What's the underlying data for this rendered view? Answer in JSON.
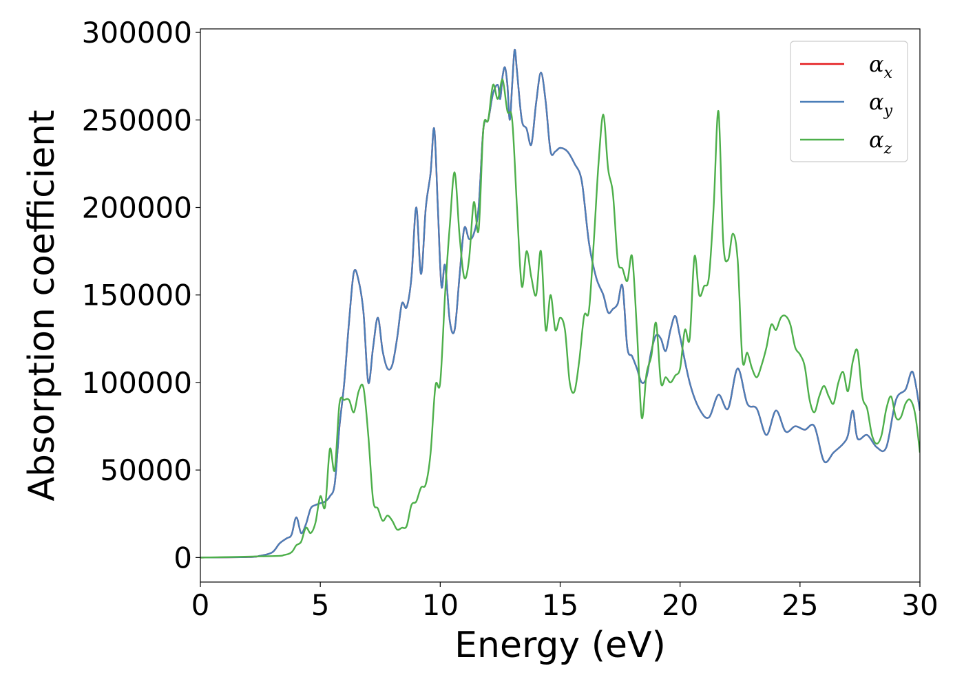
{
  "chart_data": {
    "type": "line",
    "xlabel": "Energy (eV)",
    "ylabel": "Absorption coefficient",
    "xlim": [
      0,
      30
    ],
    "ylim": [
      -14000,
      302000
    ],
    "xticks": [
      0,
      5,
      10,
      15,
      20,
      25,
      30
    ],
    "xtick_labels": [
      "0",
      "5",
      "10",
      "15",
      "20",
      "25",
      "30"
    ],
    "yticks": [
      0,
      50000,
      100000,
      150000,
      200000,
      250000,
      300000
    ],
    "ytick_labels": [
      "0",
      "50000",
      "100000",
      "150000",
      "200000",
      "250000",
      "300000"
    ],
    "grid": false,
    "legend_position": "top-right",
    "series": [
      {
        "name": "α_x",
        "legend_base": "α",
        "legend_sub": "x",
        "color": "#e41a1c",
        "x": [
          0,
          2,
          2.5,
          3,
          3.3,
          3.6,
          3.8,
          4.0,
          4.2,
          4.4,
          4.6,
          4.8,
          5.0,
          5.2,
          5.4,
          5.6,
          5.8,
          6.0,
          6.2,
          6.4,
          6.6,
          6.8,
          7.0,
          7.2,
          7.4,
          7.6,
          7.8,
          8.0,
          8.2,
          8.4,
          8.6,
          8.8,
          9.0,
          9.2,
          9.4,
          9.6,
          9.75,
          9.9,
          10.05,
          10.2,
          10.4,
          10.6,
          10.8,
          11.0,
          11.2,
          11.4,
          11.6,
          11.8,
          12.0,
          12.2,
          12.4,
          12.5,
          12.6,
          12.7,
          12.8,
          12.9,
          13.0,
          13.1,
          13.2,
          13.4,
          13.6,
          13.8,
          14.0,
          14.2,
          14.4,
          14.6,
          14.8,
          15.0,
          15.3,
          15.6,
          15.9,
          16.2,
          16.5,
          16.8,
          17.0,
          17.2,
          17.4,
          17.6,
          17.8,
          18.0,
          18.2,
          18.4,
          18.6,
          18.8,
          19.0,
          19.2,
          19.4,
          19.6,
          19.8,
          20.0,
          20.4,
          20.8,
          21.2,
          21.6,
          22.0,
          22.4,
          22.8,
          23.2,
          23.6,
          24.0,
          24.4,
          24.8,
          25.2,
          25.6,
          26.0,
          26.4,
          26.8,
          27.0,
          27.2,
          27.4,
          27.8,
          28.2,
          28.6,
          29.0,
          29.4,
          29.7,
          30.0
        ],
        "y": [
          0,
          300,
          1000,
          3000,
          8000,
          11000,
          13000,
          23000,
          14000,
          19000,
          28000,
          30000,
          31000,
          32000,
          35000,
          42000,
          75000,
          100000,
          135000,
          163000,
          158000,
          140000,
          100000,
          120000,
          137000,
          118000,
          108000,
          110000,
          125000,
          145000,
          143000,
          160000,
          200000,
          162000,
          200000,
          220000,
          245000,
          200000,
          155000,
          167000,
          135000,
          130000,
          160000,
          188000,
          182000,
          185000,
          200000,
          245000,
          250000,
          265000,
          270000,
          262000,
          275000,
          280000,
          270000,
          250000,
          270000,
          290000,
          278000,
          250000,
          245000,
          236000,
          260000,
          277000,
          260000,
          232000,
          232000,
          234000,
          232000,
          225000,
          215000,
          180000,
          160000,
          150000,
          140000,
          142000,
          145000,
          155000,
          120000,
          115000,
          108000,
          100000,
          103000,
          118000,
          127000,
          125000,
          118000,
          130000,
          138000,
          126000,
          100000,
          85000,
          80000,
          93000,
          85000,
          108000,
          88000,
          85000,
          70000,
          84000,
          72000,
          75000,
          73000,
          75000,
          55000,
          60000,
          65000,
          70000,
          84000,
          68000,
          70000,
          63000,
          63000,
          90000,
          96000,
          106000,
          84000
        ]
      },
      {
        "name": "α_y",
        "legend_base": "α",
        "legend_sub": "y",
        "color": "#4a7eb8",
        "x": [
          0,
          2,
          2.5,
          3,
          3.3,
          3.6,
          3.8,
          4.0,
          4.2,
          4.4,
          4.6,
          4.8,
          5.0,
          5.2,
          5.4,
          5.6,
          5.8,
          6.0,
          6.2,
          6.4,
          6.6,
          6.8,
          7.0,
          7.2,
          7.4,
          7.6,
          7.8,
          8.0,
          8.2,
          8.4,
          8.6,
          8.8,
          9.0,
          9.2,
          9.4,
          9.6,
          9.75,
          9.9,
          10.05,
          10.2,
          10.4,
          10.6,
          10.8,
          11.0,
          11.2,
          11.4,
          11.6,
          11.8,
          12.0,
          12.2,
          12.4,
          12.5,
          12.6,
          12.7,
          12.8,
          12.9,
          13.0,
          13.1,
          13.2,
          13.4,
          13.6,
          13.8,
          14.0,
          14.2,
          14.4,
          14.6,
          14.8,
          15.0,
          15.3,
          15.6,
          15.9,
          16.2,
          16.5,
          16.8,
          17.0,
          17.2,
          17.4,
          17.6,
          17.8,
          18.0,
          18.2,
          18.4,
          18.6,
          18.8,
          19.0,
          19.2,
          19.4,
          19.6,
          19.8,
          20.0,
          20.4,
          20.8,
          21.2,
          21.6,
          22.0,
          22.4,
          22.8,
          23.2,
          23.6,
          24.0,
          24.4,
          24.8,
          25.2,
          25.6,
          26.0,
          26.4,
          26.8,
          27.0,
          27.2,
          27.4,
          27.8,
          28.2,
          28.6,
          29.0,
          29.4,
          29.7,
          30.0
        ],
        "y": [
          0,
          300,
          1000,
          3000,
          8000,
          11000,
          13000,
          23000,
          14000,
          19000,
          28000,
          30000,
          31000,
          32000,
          35000,
          42000,
          75000,
          100000,
          135000,
          163000,
          158000,
          140000,
          100000,
          120000,
          137000,
          118000,
          108000,
          110000,
          125000,
          145000,
          143000,
          160000,
          200000,
          162000,
          200000,
          220000,
          245000,
          200000,
          155000,
          167000,
          135000,
          130000,
          160000,
          188000,
          182000,
          185000,
          200000,
          245000,
          250000,
          265000,
          270000,
          262000,
          275000,
          280000,
          270000,
          250000,
          270000,
          290000,
          278000,
          250000,
          245000,
          236000,
          260000,
          277000,
          260000,
          232000,
          232000,
          234000,
          232000,
          225000,
          215000,
          180000,
          160000,
          150000,
          140000,
          142000,
          145000,
          155000,
          120000,
          115000,
          108000,
          100000,
          103000,
          118000,
          127000,
          125000,
          118000,
          130000,
          138000,
          126000,
          100000,
          85000,
          80000,
          93000,
          85000,
          108000,
          88000,
          85000,
          70000,
          84000,
          72000,
          75000,
          73000,
          75000,
          55000,
          60000,
          65000,
          70000,
          84000,
          68000,
          70000,
          63000,
          63000,
          90000,
          96000,
          106000,
          84000
        ]
      },
      {
        "name": "α_z",
        "legend_base": "α",
        "legend_sub": "z",
        "color": "#4daf4a",
        "x": [
          0,
          3,
          3.5,
          3.8,
          4.0,
          4.2,
          4.4,
          4.6,
          4.8,
          5.0,
          5.2,
          5.4,
          5.6,
          5.8,
          6.0,
          6.2,
          6.4,
          6.6,
          6.8,
          7.0,
          7.2,
          7.4,
          7.6,
          7.8,
          8.0,
          8.2,
          8.4,
          8.6,
          8.8,
          9.0,
          9.2,
          9.4,
          9.6,
          9.8,
          10.0,
          10.2,
          10.4,
          10.6,
          10.8,
          11.0,
          11.2,
          11.4,
          11.6,
          11.8,
          12.0,
          12.2,
          12.4,
          12.6,
          12.8,
          13.0,
          13.2,
          13.4,
          13.6,
          13.8,
          14.0,
          14.2,
          14.4,
          14.6,
          14.8,
          15.0,
          15.2,
          15.4,
          15.6,
          15.8,
          16.0,
          16.2,
          16.4,
          16.6,
          16.8,
          17.0,
          17.2,
          17.4,
          17.6,
          17.8,
          18.0,
          18.2,
          18.4,
          18.6,
          18.8,
          19.0,
          19.2,
          19.4,
          19.6,
          19.8,
          20.0,
          20.2,
          20.4,
          20.6,
          20.8,
          21.0,
          21.2,
          21.4,
          21.6,
          21.8,
          22.0,
          22.2,
          22.4,
          22.6,
          22.8,
          23.0,
          23.2,
          23.4,
          23.6,
          23.8,
          24.0,
          24.2,
          24.4,
          24.6,
          24.8,
          25.0,
          25.2,
          25.4,
          25.6,
          25.8,
          26.0,
          26.2,
          26.4,
          26.6,
          26.8,
          27.0,
          27.2,
          27.4,
          27.6,
          27.8,
          28.0,
          28.2,
          28.4,
          28.6,
          28.8,
          29.0,
          29.2,
          29.4,
          29.6,
          29.8,
          30.0
        ],
        "y": [
          0,
          800,
          1500,
          3000,
          7000,
          9000,
          17000,
          14000,
          20000,
          35000,
          29000,
          62000,
          50000,
          88000,
          90000,
          90000,
          83000,
          95000,
          97000,
          70000,
          33000,
          28000,
          21000,
          24000,
          21000,
          16000,
          17000,
          18000,
          30000,
          32000,
          40000,
          42000,
          60000,
          98000,
          100000,
          150000,
          190000,
          220000,
          185000,
          160000,
          170000,
          203000,
          187000,
          245000,
          250000,
          270000,
          262000,
          273000,
          255000,
          250000,
          200000,
          155000,
          175000,
          160000,
          150000,
          175000,
          130000,
          150000,
          130000,
          137000,
          130000,
          100000,
          95000,
          113000,
          138000,
          141000,
          180000,
          225000,
          253000,
          222000,
          208000,
          170000,
          165000,
          158000,
          172000,
          130000,
          80000,
          105000,
          115000,
          134000,
          100000,
          103000,
          100000,
          104000,
          108000,
          130000,
          125000,
          172000,
          150000,
          155000,
          160000,
          200000,
          255000,
          180000,
          170000,
          185000,
          170000,
          113000,
          117000,
          108000,
          103000,
          110000,
          120000,
          133000,
          130000,
          137000,
          138000,
          133000,
          120000,
          116000,
          109000,
          90000,
          83000,
          92000,
          98000,
          92000,
          88000,
          100000,
          106000,
          95000,
          112000,
          118000,
          92000,
          85000,
          70000,
          65000,
          70000,
          85000,
          92000,
          80000,
          80000,
          88000,
          90000,
          82000,
          60000
        ]
      }
    ]
  }
}
